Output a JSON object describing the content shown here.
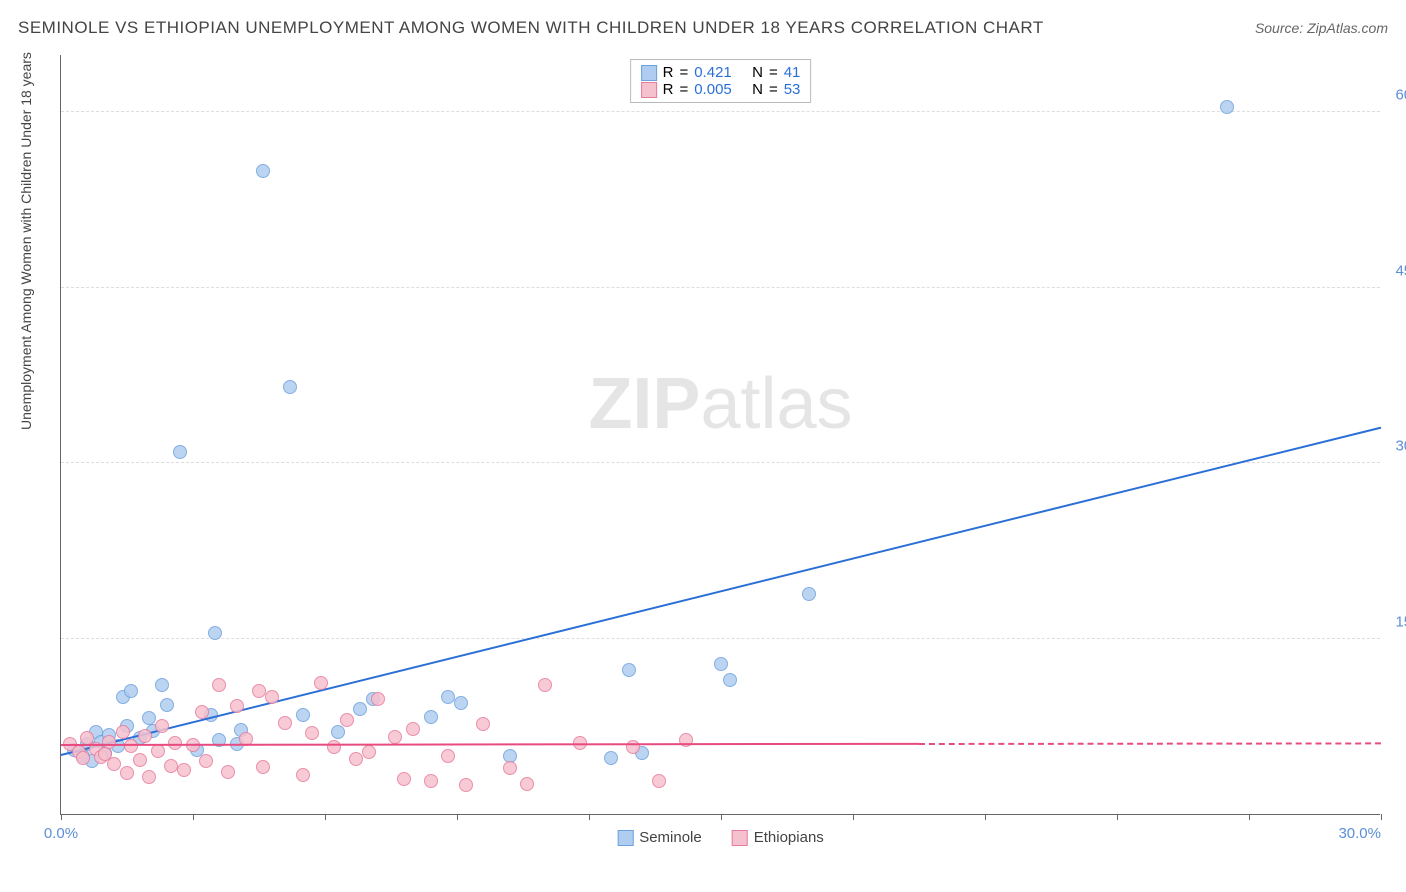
{
  "title": "SEMINOLE VS ETHIOPIAN UNEMPLOYMENT AMONG WOMEN WITH CHILDREN UNDER 18 YEARS CORRELATION CHART",
  "source": "Source: ZipAtlas.com",
  "ylabel": "Unemployment Among Women with Children Under 18 years",
  "watermark_a": "ZIP",
  "watermark_b": "atlas",
  "chart": {
    "type": "scatter",
    "xlim": [
      0,
      30
    ],
    "ylim": [
      0,
      65
    ],
    "xticks": [
      0,
      3,
      6,
      9,
      12,
      15,
      18,
      21,
      24,
      27,
      30
    ],
    "xtick_labels": {
      "0": "0.0%",
      "30": "30.0%"
    },
    "yticks": [
      15,
      30,
      45,
      60
    ],
    "ytick_labels": {
      "15": "15.0%",
      "30": "30.0%",
      "45": "45.0%",
      "60": "60.0%"
    },
    "background_color": "#ffffff",
    "grid_color": "#dddddd",
    "axis_color": "#666666",
    "tick_label_color": "#5b8fd6",
    "series": [
      {
        "name": "Seminole",
        "fill": "#aecdf0",
        "stroke": "#6ea2dd",
        "trend_color": "#2a6fd6",
        "r": "0.421",
        "n": "41",
        "trend": {
          "x1": 0,
          "y1": 5,
          "x2": 30,
          "y2": 33
        },
        "points": [
          [
            0.3,
            5.5
          ],
          [
            0.5,
            5
          ],
          [
            0.6,
            6
          ],
          [
            0.7,
            4.5
          ],
          [
            0.8,
            7
          ],
          [
            0.9,
            6.2
          ],
          [
            1.0,
            5.2
          ],
          [
            1.1,
            6.8
          ],
          [
            1.3,
            5.8
          ],
          [
            1.4,
            10
          ],
          [
            1.5,
            7.5
          ],
          [
            1.6,
            10.5
          ],
          [
            1.8,
            6.5
          ],
          [
            2.0,
            8.2
          ],
          [
            2.1,
            7.1
          ],
          [
            2.3,
            11
          ],
          [
            2.4,
            9.3
          ],
          [
            2.7,
            31
          ],
          [
            3.1,
            5.5
          ],
          [
            3.4,
            8.5
          ],
          [
            3.5,
            15.5
          ],
          [
            3.6,
            6.3
          ],
          [
            4.0,
            6
          ],
          [
            4.1,
            7.2
          ],
          [
            4.6,
            55
          ],
          [
            5.2,
            36.5
          ],
          [
            5.5,
            8.5
          ],
          [
            6.3,
            7
          ],
          [
            6.8,
            9
          ],
          [
            7.1,
            9.8
          ],
          [
            8.4,
            8.3
          ],
          [
            8.8,
            10
          ],
          [
            9.1,
            9.5
          ],
          [
            10.2,
            5
          ],
          [
            12.5,
            4.8
          ],
          [
            12.9,
            12.3
          ],
          [
            13.2,
            5.2
          ],
          [
            15.0,
            12.8
          ],
          [
            15.2,
            11.5
          ],
          [
            17.0,
            18.8
          ],
          [
            26.5,
            60.5
          ]
        ]
      },
      {
        "name": "Ethiopians",
        "fill": "#f6c1cf",
        "stroke": "#e77c9c",
        "trend_color": "#e84b80",
        "r": "0.005",
        "n": "53",
        "trend": {
          "x1": 0,
          "y1": 5.8,
          "x2": 19.5,
          "y2": 5.9
        },
        "trend_dash": {
          "x1": 19.5,
          "y1": 5.9,
          "x2": 30,
          "y2": 5.95
        },
        "points": [
          [
            0.2,
            6
          ],
          [
            0.4,
            5.3
          ],
          [
            0.5,
            4.8
          ],
          [
            0.6,
            6.5
          ],
          [
            0.8,
            5.6
          ],
          [
            0.9,
            4.9
          ],
          [
            1.0,
            5.1
          ],
          [
            1.1,
            6.2
          ],
          [
            1.2,
            4.3
          ],
          [
            1.4,
            7
          ],
          [
            1.5,
            3.5
          ],
          [
            1.6,
            5.8
          ],
          [
            1.8,
            4.6
          ],
          [
            1.9,
            6.7
          ],
          [
            2.0,
            3.2
          ],
          [
            2.2,
            5.4
          ],
          [
            2.3,
            7.5
          ],
          [
            2.5,
            4.1
          ],
          [
            2.6,
            6.1
          ],
          [
            2.8,
            3.8
          ],
          [
            3.0,
            5.9
          ],
          [
            3.2,
            8.7
          ],
          [
            3.3,
            4.5
          ],
          [
            3.6,
            11
          ],
          [
            3.8,
            3.6
          ],
          [
            4.0,
            9.2
          ],
          [
            4.2,
            6.4
          ],
          [
            4.5,
            10.5
          ],
          [
            4.6,
            4
          ],
          [
            4.8,
            10
          ],
          [
            5.1,
            7.8
          ],
          [
            5.5,
            3.3
          ],
          [
            5.7,
            6.9
          ],
          [
            5.9,
            11.2
          ],
          [
            6.2,
            5.7
          ],
          [
            6.5,
            8
          ],
          [
            6.7,
            4.7
          ],
          [
            7.0,
            5.3
          ],
          [
            7.2,
            9.8
          ],
          [
            7.6,
            6.6
          ],
          [
            7.8,
            3
          ],
          [
            8.0,
            7.3
          ],
          [
            8.4,
            2.8
          ],
          [
            8.8,
            5
          ],
          [
            9.2,
            2.5
          ],
          [
            9.6,
            7.7
          ],
          [
            10.2,
            3.9
          ],
          [
            10.6,
            2.6
          ],
          [
            11.0,
            11
          ],
          [
            11.8,
            6.1
          ],
          [
            13.0,
            5.7
          ],
          [
            13.6,
            2.8
          ],
          [
            14.2,
            6.3
          ]
        ]
      }
    ]
  },
  "legend_top": {
    "r_label": "R",
    "n_label": "N",
    "eq": "="
  },
  "legend_bottom": {
    "s1": "Seminole",
    "s2": "Ethiopians"
  }
}
